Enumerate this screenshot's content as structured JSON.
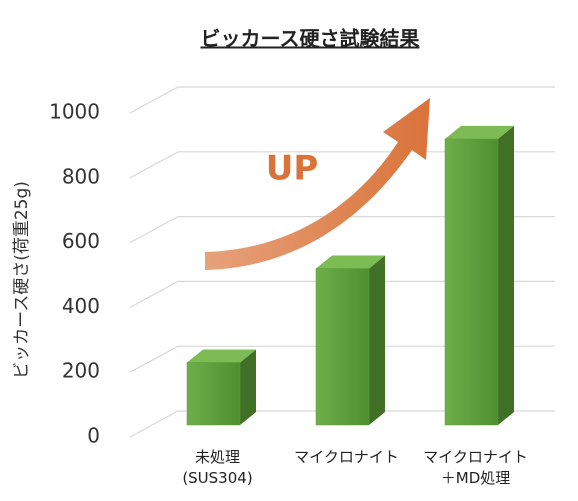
{
  "chart_data": {
    "type": "bar",
    "title": "ビッカース硬さ試験結果",
    "y_label": "ビッカース硬さ(荷重25g)",
    "annotation": "UP",
    "categories": [
      "未処理\n(SUS304)",
      "マイクロナイト",
      "マイクロナイト\n＋MD処理"
    ],
    "values": [
      230,
      520,
      920
    ],
    "color": "#5a9e3a",
    "ylim": [
      0,
      1000
    ],
    "yticks": [
      0,
      200,
      400,
      600,
      800,
      1000
    ],
    "grid": true
  }
}
